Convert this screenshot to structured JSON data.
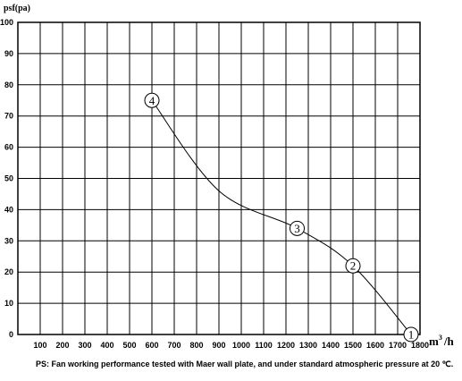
{
  "chart_data": {
    "type": "line",
    "ylabel": "psf(pa)",
    "xlabel_unit_base": "m",
    "xlabel_unit_sup": "3",
    "xlabel_unit_tail": "/h",
    "xlim": [
      0,
      1800
    ],
    "ylim": [
      0,
      100
    ],
    "x_ticks": [
      "100",
      "200",
      "300",
      "400",
      "500",
      "600",
      "700",
      "800",
      "900",
      "1000",
      "1100",
      "1200",
      "1300",
      "1400",
      "1500",
      "1600",
      "1700",
      "1800"
    ],
    "y_ticks": [
      "0",
      "10",
      "20",
      "30",
      "40",
      "50",
      "60",
      "70",
      "80",
      "90",
      "100"
    ],
    "grid": true,
    "series": [
      {
        "points": [
          {
            "x": 600,
            "y": 75
          },
          {
            "x": 900,
            "y": 46
          },
          {
            "x": 1250,
            "y": 34
          },
          {
            "x": 1500,
            "y": 22
          },
          {
            "x": 1760,
            "y": 0
          }
        ]
      }
    ],
    "markers": [
      {
        "label": "4",
        "x": 600,
        "y": 75
      },
      {
        "label": "3",
        "x": 1250,
        "y": 34
      },
      {
        "label": "2",
        "x": 1500,
        "y": 22
      },
      {
        "label": "1",
        "x": 1760,
        "y": 0
      }
    ]
  },
  "note": "PS: Fan working performance tested with Maer wall plate, and under standard atmospheric pressure at 20 ℃."
}
